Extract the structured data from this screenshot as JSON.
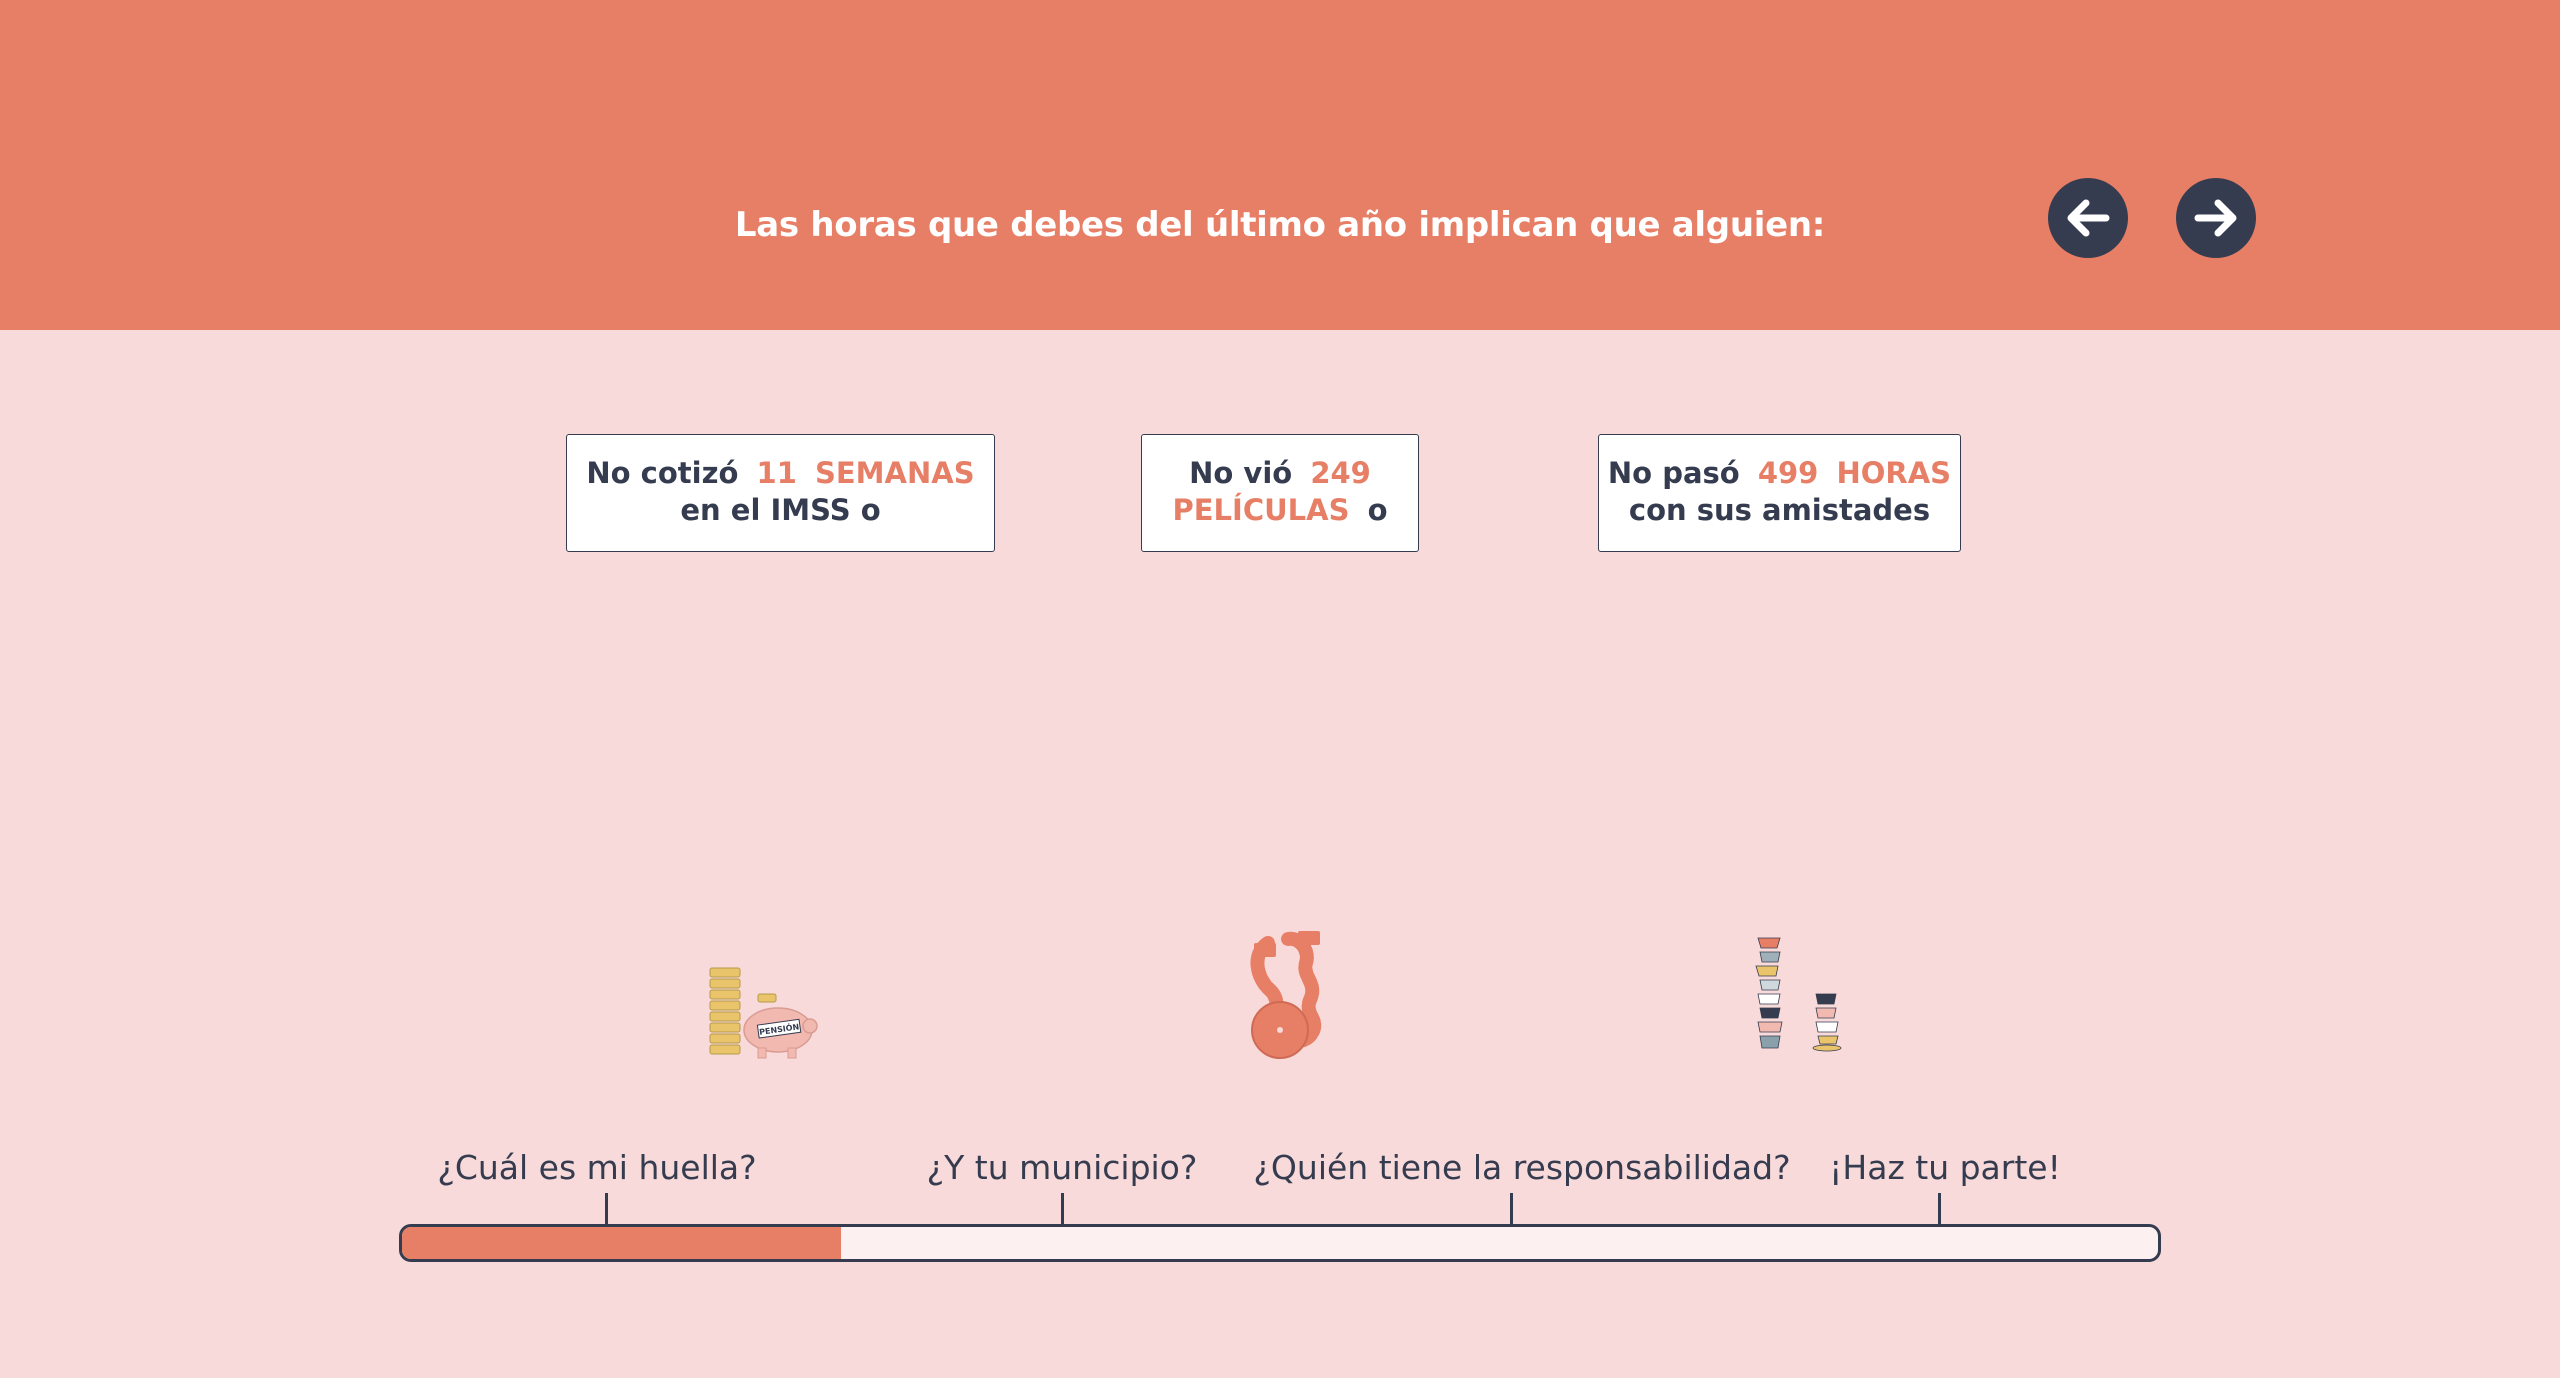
{
  "header": {
    "title": "Las horas que debes del último año implican que alguien:",
    "prev_icon": "arrow-left-icon",
    "next_icon": "arrow-right-icon"
  },
  "cards": [
    {
      "line1_text": "No cotizó",
      "line1_value": "11",
      "line1_unit": "SEMANAS",
      "line2": "en el IMSS o",
      "icon": "piggy-bank-coins-icon"
    },
    {
      "line1_text": "No vió",
      "line1_value": "249",
      "line2_unit": "PELÍCULAS",
      "line2_suffix": "o",
      "icon": "film-reel-icon"
    },
    {
      "line1_text": "No pasó",
      "line1_value": "499",
      "line1_unit": "HORAS",
      "line2": "con sus amistades",
      "icon": "stacked-cups-icon"
    }
  ],
  "piggy_label": "PENSIÓN",
  "timeline": {
    "steps": [
      {
        "label": "¿Cuál es mi huella?"
      },
      {
        "label": "¿Y tu municipio?"
      },
      {
        "label": "¿Quién tiene la responsabilidad?"
      },
      {
        "label": "¡Haz tu parte!"
      }
    ],
    "progress_fraction": 0.25
  },
  "colors": {
    "accent": "#e77e66",
    "background": "#f9dada",
    "dark": "#353c4f"
  }
}
